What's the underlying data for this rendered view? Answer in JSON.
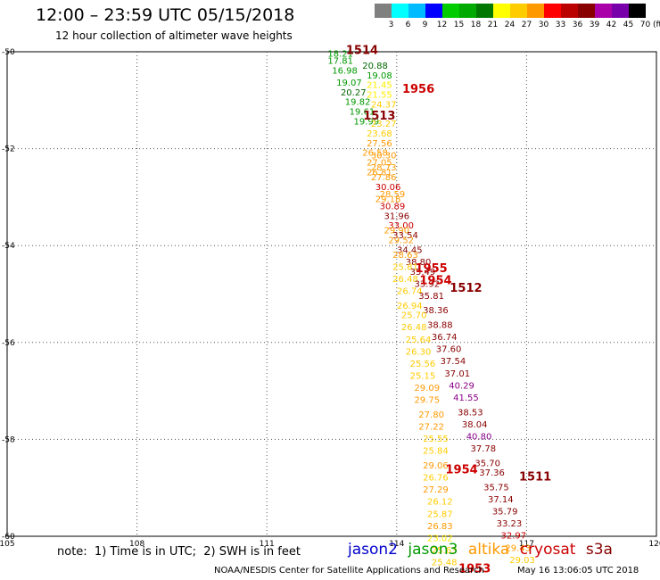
{
  "header": {
    "title": "12:00 – 23:59 UTC 05/15/2018",
    "subtitle": "12 hour collection of altimeter wave heights"
  },
  "color_scale": {
    "unit": "(ft)",
    "colors": [
      "#808080",
      "#00ffff",
      "#00bbff",
      "#0000ff",
      "#00cc00",
      "#00aa00",
      "#007700",
      "#ffff00",
      "#ffcc00",
      "#ff9900",
      "#ff0000",
      "#bb0000",
      "#880000",
      "#aa00aa",
      "#7700aa",
      "#000000"
    ],
    "labels": [
      "3",
      "6",
      "9",
      "12",
      "15",
      "18",
      "21",
      "24",
      "27",
      "30",
      "33",
      "36",
      "39",
      "42",
      "45",
      "70"
    ]
  },
  "chart_data": {
    "type": "scatter",
    "xlim": [
      105,
      120
    ],
    "ylim": [
      -60,
      -50
    ],
    "x_ticks": [
      "105",
      "108",
      "111",
      "114",
      "117",
      "120"
    ],
    "y_ticks": [
      "-50",
      "-52",
      "-54",
      "-56",
      "-58",
      "-60"
    ],
    "grid": true,
    "points": [
      {
        "v": "18.21",
        "x": 112.7,
        "y": -50.1,
        "c": "#009900"
      },
      {
        "v": "17.81",
        "x": 112.7,
        "y": -50.25,
        "c": "#009900"
      },
      {
        "v": "16.98",
        "x": 112.8,
        "y": -50.45,
        "c": "#009900"
      },
      {
        "v": "19.07",
        "x": 112.9,
        "y": -50.7,
        "c": "#009900"
      },
      {
        "v": "20.27",
        "x": 113.0,
        "y": -50.9,
        "c": "#006600"
      },
      {
        "v": "19.82",
        "x": 113.1,
        "y": -51.1,
        "c": "#009900"
      },
      {
        "v": "19.61",
        "x": 113.2,
        "y": -51.3,
        "c": "#009900"
      },
      {
        "v": "19.99",
        "x": 113.3,
        "y": -51.5,
        "c": "#009900"
      },
      {
        "v": "20.88",
        "x": 113.5,
        "y": -50.35,
        "c": "#006600"
      },
      {
        "v": "19.08",
        "x": 113.6,
        "y": -50.55,
        "c": "#009900"
      },
      {
        "v": "21.45",
        "x": 113.6,
        "y": -50.75,
        "c": "#ffee00"
      },
      {
        "v": "21.55",
        "x": 113.6,
        "y": -50.95,
        "c": "#ffee00"
      },
      {
        "v": "24.37",
        "x": 113.7,
        "y": -51.15,
        "c": "#ffcc00"
      },
      {
        "v": "23.27",
        "x": 113.7,
        "y": -51.55,
        "c": "#ffcc00"
      },
      {
        "v": "23.68",
        "x": 113.6,
        "y": -51.75,
        "c": "#ffcc00"
      },
      {
        "v": "27.56",
        "x": 113.6,
        "y": -51.95,
        "c": "#ff9900"
      },
      {
        "v": "26.58",
        "x": 113.5,
        "y": -52.15,
        "c": "#ff9900"
      },
      {
        "v": "30.30",
        "x": 113.7,
        "y": -52.2,
        "c": "#ff9900"
      },
      {
        "v": "27.05",
        "x": 113.6,
        "y": -52.35,
        "c": "#ff9900"
      },
      {
        "v": "28.73",
        "x": 113.7,
        "y": -52.45,
        "c": "#ff9900"
      },
      {
        "v": "26.81",
        "x": 113.6,
        "y": -52.55,
        "c": "#ff9900"
      },
      {
        "v": "27.86",
        "x": 113.7,
        "y": -52.65,
        "c": "#ff9900"
      },
      {
        "v": "30.06",
        "x": 113.8,
        "y": -52.85,
        "c": "#cc0000"
      },
      {
        "v": "28.59",
        "x": 113.9,
        "y": -53.0,
        "c": "#ff9900"
      },
      {
        "v": "29.18",
        "x": 113.8,
        "y": -53.1,
        "c": "#ff9900"
      },
      {
        "v": "30.89",
        "x": 113.9,
        "y": -53.25,
        "c": "#cc0000"
      },
      {
        "v": "31.96",
        "x": 114.0,
        "y": -53.45,
        "c": "#880000"
      },
      {
        "v": "33.00",
        "x": 114.1,
        "y": -53.65,
        "c": "#cc0000"
      },
      {
        "v": "29.90",
        "x": 114.0,
        "y": -53.75,
        "c": "#ff9900"
      },
      {
        "v": "33.54",
        "x": 114.2,
        "y": -53.85,
        "c": "#880000"
      },
      {
        "v": "29.52",
        "x": 114.1,
        "y": -53.95,
        "c": "#ff9900"
      },
      {
        "v": "34.45",
        "x": 114.3,
        "y": -54.15,
        "c": "#880000"
      },
      {
        "v": "28.63",
        "x": 114.2,
        "y": -54.25,
        "c": "#ff9900"
      },
      {
        "v": "38.80",
        "x": 114.5,
        "y": -54.4,
        "c": "#880000"
      },
      {
        "v": "25.81",
        "x": 114.2,
        "y": -54.5,
        "c": "#ffcc00"
      },
      {
        "v": "35.49",
        "x": 114.6,
        "y": -54.6,
        "c": "#880000"
      },
      {
        "v": "26.48",
        "x": 114.2,
        "y": -54.75,
        "c": "#ffcc00"
      },
      {
        "v": "33.92",
        "x": 114.7,
        "y": -54.85,
        "c": "#880000"
      },
      {
        "v": "26.74",
        "x": 114.3,
        "y": -55.0,
        "c": "#ffcc00"
      },
      {
        "v": "35.81",
        "x": 114.8,
        "y": -55.1,
        "c": "#880000"
      },
      {
        "v": "26.94",
        "x": 114.3,
        "y": -55.3,
        "c": "#ffcc00"
      },
      {
        "v": "38.36",
        "x": 114.9,
        "y": -55.4,
        "c": "#880000"
      },
      {
        "v": "25.70",
        "x": 114.4,
        "y": -55.5,
        "c": "#ffcc00"
      },
      {
        "v": "38.88",
        "x": 115.0,
        "y": -55.7,
        "c": "#880000"
      },
      {
        "v": "26.48",
        "x": 114.4,
        "y": -55.75,
        "c": "#ffcc00"
      },
      {
        "v": "36.74",
        "x": 115.1,
        "y": -55.95,
        "c": "#880000"
      },
      {
        "v": "25.64",
        "x": 114.5,
        "y": -56.0,
        "c": "#ffcc00"
      },
      {
        "v": "37.60",
        "x": 115.2,
        "y": -56.2,
        "c": "#880000"
      },
      {
        "v": "26.30",
        "x": 114.5,
        "y": -56.25,
        "c": "#ffcc00"
      },
      {
        "v": "37.54",
        "x": 115.3,
        "y": -56.45,
        "c": "#880000"
      },
      {
        "v": "25.56",
        "x": 114.6,
        "y": -56.5,
        "c": "#ffcc00"
      },
      {
        "v": "37.01",
        "x": 115.4,
        "y": -56.7,
        "c": "#880000"
      },
      {
        "v": "25.15",
        "x": 114.6,
        "y": -56.75,
        "c": "#ffcc00"
      },
      {
        "v": "40.29",
        "x": 115.5,
        "y": -56.95,
        "c": "#880088"
      },
      {
        "v": "29.09",
        "x": 114.7,
        "y": -57.0,
        "c": "#ff9900"
      },
      {
        "v": "41.55",
        "x": 115.6,
        "y": -57.2,
        "c": "#880088"
      },
      {
        "v": "29.75",
        "x": 114.7,
        "y": -57.25,
        "c": "#ff9900"
      },
      {
        "v": "38.53",
        "x": 115.7,
        "y": -57.5,
        "c": "#880000"
      },
      {
        "v": "27.80",
        "x": 114.8,
        "y": -57.55,
        "c": "#ff9900"
      },
      {
        "v": "38.04",
        "x": 115.8,
        "y": -57.75,
        "c": "#880000"
      },
      {
        "v": "27.22",
        "x": 114.8,
        "y": -57.8,
        "c": "#ff9900"
      },
      {
        "v": "40.80",
        "x": 115.9,
        "y": -58.0,
        "c": "#880088"
      },
      {
        "v": "25.55",
        "x": 114.9,
        "y": -58.05,
        "c": "#ffcc00"
      },
      {
        "v": "37.78",
        "x": 116.0,
        "y": -58.25,
        "c": "#880000"
      },
      {
        "v": "25.84",
        "x": 114.9,
        "y": -58.3,
        "c": "#ffcc00"
      },
      {
        "v": "35.70",
        "x": 116.1,
        "y": -58.55,
        "c": "#880000"
      },
      {
        "v": "29.06",
        "x": 114.9,
        "y": -58.6,
        "c": "#ff9900"
      },
      {
        "v": "37.36",
        "x": 116.2,
        "y": -58.75,
        "c": "#880000"
      },
      {
        "v": "26.76",
        "x": 114.9,
        "y": -58.85,
        "c": "#ffcc00"
      },
      {
        "v": "35.75",
        "x": 116.3,
        "y": -59.05,
        "c": "#880000"
      },
      {
        "v": "27.29",
        "x": 114.9,
        "y": -59.1,
        "c": "#ff9900"
      },
      {
        "v": "37.14",
        "x": 116.4,
        "y": -59.3,
        "c": "#880000"
      },
      {
        "v": "26.12",
        "x": 115.0,
        "y": -59.35,
        "c": "#ffcc00"
      },
      {
        "v": "35.79",
        "x": 116.5,
        "y": -59.55,
        "c": "#880000"
      },
      {
        "v": "25.87",
        "x": 115.0,
        "y": -59.6,
        "c": "#ffcc00"
      },
      {
        "v": "33.23",
        "x": 116.6,
        "y": -59.8,
        "c": "#880000"
      },
      {
        "v": "26.83",
        "x": 115.0,
        "y": -59.85,
        "c": "#ff9900"
      },
      {
        "v": "32.97",
        "x": 116.7,
        "y": -60.05,
        "c": "#cc0000"
      },
      {
        "v": "23.02",
        "x": 115.0,
        "y": -60.1,
        "c": "#ffee00"
      },
      {
        "v": "29.43",
        "x": 116.8,
        "y": -60.3,
        "c": "#ff9900"
      },
      {
        "v": "25.63",
        "x": 115.1,
        "y": -60.35,
        "c": "#ffcc00"
      },
      {
        "v": "29.03",
        "x": 116.9,
        "y": -60.55,
        "c": "#ffcc00"
      },
      {
        "v": "25.48",
        "x": 115.1,
        "y": -60.6,
        "c": "#ffcc00"
      }
    ],
    "pass_labels": [
      {
        "v": "1514",
        "x": 113.2,
        "y": -50.05,
        "c": "#880000"
      },
      {
        "v": "1956",
        "x": 114.5,
        "y": -50.85,
        "c": "#cc0000"
      },
      {
        "v": "1513",
        "x": 113.6,
        "y": -51.4,
        "c": "#880000"
      },
      {
        "v": "1955",
        "x": 114.8,
        "y": -54.55,
        "c": "#cc0000"
      },
      {
        "v": "1954",
        "x": 114.9,
        "y": -54.8,
        "c": "#cc0000"
      },
      {
        "v": "1512",
        "x": 115.6,
        "y": -54.95,
        "c": "#880000"
      },
      {
        "v": "1954",
        "x": 115.5,
        "y": -58.7,
        "c": "#cc0000"
      },
      {
        "v": "1511",
        "x": 117.2,
        "y": -58.85,
        "c": "#880000"
      },
      {
        "v": "1953",
        "x": 115.8,
        "y": -60.75,
        "c": "#cc0000"
      }
    ]
  },
  "footer": {
    "note": "note:  1) Time is in UTC;  2) SWH is in feet",
    "satellites": [
      {
        "name": "jason2",
        "color": "#0000cc"
      },
      {
        "name": "jason3",
        "color": "#009900"
      },
      {
        "name": "altika",
        "color": "#ff9900"
      },
      {
        "name": "cryosat",
        "color": "#cc0000"
      },
      {
        "name": "s3a",
        "color": "#880000"
      }
    ],
    "credit": "NOAA/NESDIS Center for Satellite Applications and Research",
    "timestamp": "May 16 13:06:05 UTC 2018"
  }
}
